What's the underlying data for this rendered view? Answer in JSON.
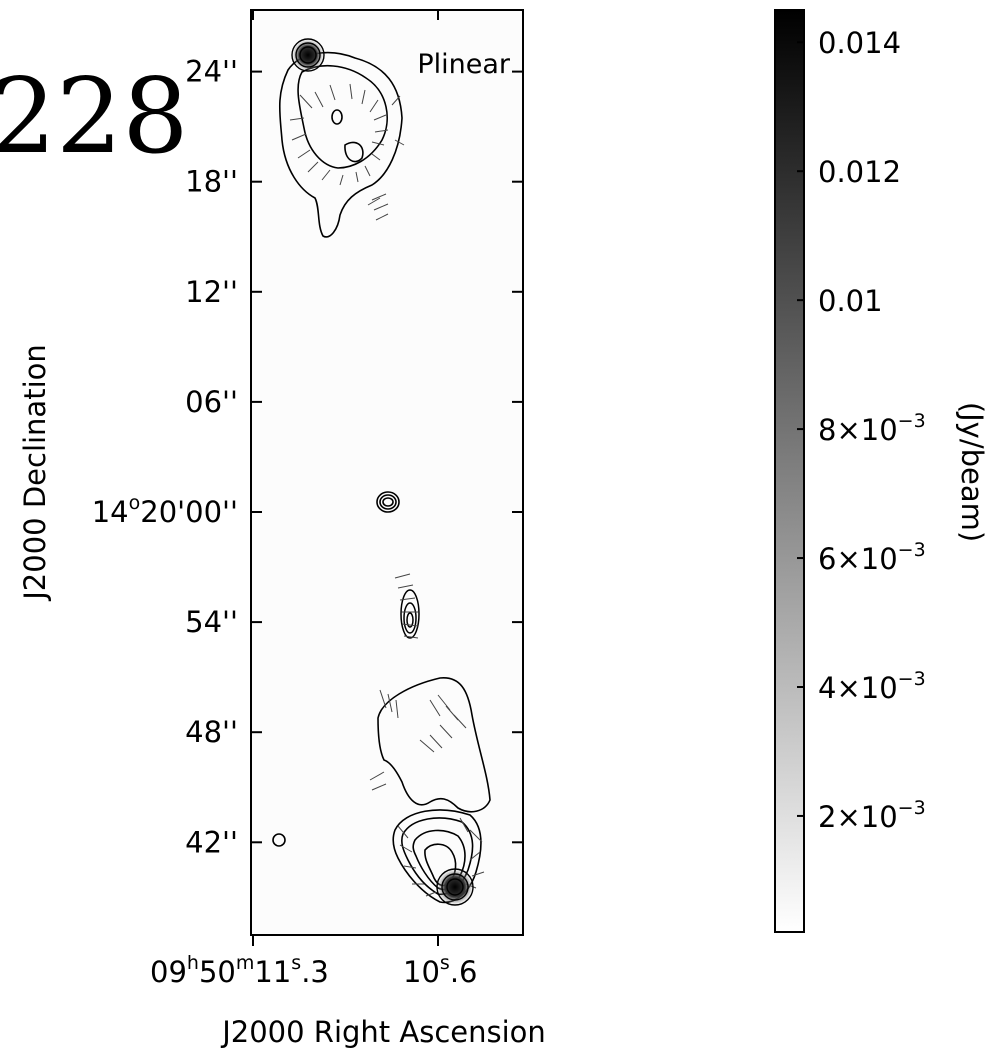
{
  "chart_data": {
    "type": "heatmap",
    "title_fragment": "228",
    "map_label": "Plinear",
    "xlabel": "J2000 Right Ascension",
    "ylabel": "J2000 Declination",
    "x_ticks": [
      {
        "h": "09",
        "m": "50",
        "s": "11",
        "frac": ".3"
      },
      {
        "s": "10",
        "frac": ".6"
      }
    ],
    "y_ticks": [
      {
        "label": "24''",
        "dec_arcsec": 24
      },
      {
        "label": "18''",
        "dec_arcsec": 18
      },
      {
        "label": "12''",
        "dec_arcsec": 12
      },
      {
        "label": "06''",
        "dec_arcsec": 6
      },
      {
        "label": "14°20'00''",
        "deg": "14",
        "rest": "20'00''",
        "dec_arcsec": 0
      },
      {
        "label": "54''",
        "dec_arcsec": -6
      },
      {
        "label": "48''",
        "dec_arcsec": -12
      },
      {
        "label": "42''",
        "dec_arcsec": -18
      }
    ],
    "colorbar": {
      "label": "(Jy/beam)",
      "range": [
        0.0002,
        0.0145
      ],
      "colormap": "grayscale, white (low) to black (high)",
      "ticks": [
        {
          "value": 0.014,
          "text": "0.014"
        },
        {
          "value": 0.012,
          "text": "0.012"
        },
        {
          "value": 0.01,
          "text": "0.01"
        },
        {
          "value": 0.008,
          "mant": "8×10",
          "exp": "−3"
        },
        {
          "value": 0.006,
          "mant": "6×10",
          "exp": "−3"
        },
        {
          "value": 0.004,
          "mant": "4×10",
          "exp": "−3"
        },
        {
          "value": 0.002,
          "mant": "2×10",
          "exp": "−3"
        }
      ]
    },
    "features": {
      "north_hotspot_peak": "0.014",
      "south_hotspot_peak": "0.014",
      "overlays": [
        "total intensity contours",
        "polarization vectors"
      ],
      "beam": "circular"
    }
  }
}
